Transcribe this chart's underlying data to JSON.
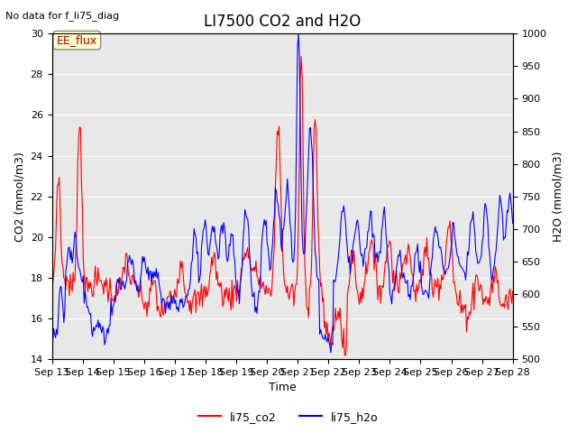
{
  "title": "LI7500 CO2 and H2O",
  "subtitle": "No data for f_li75_diag",
  "xlabel": "Time",
  "ylabel_left": "CO2 (mmol/m3)",
  "ylabel_right": "H2O (mmol/m3)",
  "ylim_left": [
    14,
    30
  ],
  "ylim_right": [
    500,
    1000
  ],
  "legend_entries": [
    "li75_co2",
    "li75_h2o"
  ],
  "co2_color": "red",
  "h2o_color": "blue",
  "bg_color": "#e8e8e8",
  "annotation_text": "EE_flux",
  "annotation_box_color": "#ffffcc",
  "annotation_box_edge": "#888888",
  "annotation_text_color": "#aa0000",
  "title_fontsize": 12,
  "axis_fontsize": 9,
  "tick_fontsize": 8,
  "xtick_labels": [
    "Sep 13",
    "Sep 14",
    "Sep 15",
    "Sep 16",
    "Sep 17",
    "Sep 18",
    "Sep 19",
    "Sep 20",
    "Sep 21",
    "Sep 22",
    "Sep 23",
    "Sep 24",
    "Sep 25",
    "Sep 26",
    "Sep 27",
    "Sep 28"
  ]
}
